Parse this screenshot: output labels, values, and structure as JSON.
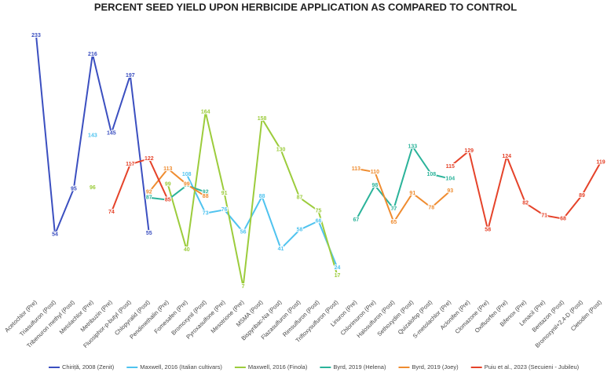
{
  "chart_data": {
    "type": "line",
    "title": "PERCENT SEED YIELD UPON HERBICIDE APPLICATION AS COMPARED TO CONTROL",
    "categories": [
      "Acetochlor (Pre)",
      "Triasulfuron (Post)",
      "Tribenuron methyl (Post)",
      "Metolachlor (Pre)",
      "Metribuzin (Pre)",
      "Fluosiphor-p-butyl (Post)",
      "Chlopyralid (Post)",
      "Pendimethalin (Pre)",
      "Fomesafen (Pre)",
      "Bromoxynil (Post)",
      "Pyroxasulfone (Pre)",
      "Mesotrione (Pre)",
      "MSMA (Post)",
      "Bispyribac-Na (Post)",
      "Flazasulfuron (Post)",
      "Rimsulfuron (Post)",
      "Trifloxysulfuron (Post)",
      "Linuron (Pre)",
      "Chlorimuron (Pre)",
      "Halosulfuron (Post)",
      "Sethoxydim (Post)",
      "Quizalofop (Post)",
      "S-metolachlor (Pre)",
      "Aclonifen (Pre)",
      "Clomazone (Pre)",
      "Oxifluorfen (Pre)",
      "Bifenox (Pre)",
      "Lenacil (Pre)",
      "Bentazon (Post)",
      "Bromoxynil+2,4-D (Post)",
      "Cletodim (Post)"
    ],
    "ylim": [
      0,
      240
    ],
    "series": [
      {
        "name": "Chiriță, 2008 (Zenit)",
        "color": "#3b4fc0",
        "values": [
          233,
          54,
          95,
          216,
          145,
          197,
          55,
          null,
          null,
          null,
          null,
          null,
          null,
          null,
          null,
          null,
          null,
          null,
          null,
          null,
          null,
          null,
          null,
          null,
          null,
          null,
          null,
          null,
          null,
          null,
          null
        ]
      },
      {
        "name": "Maxwell, 2016 (Italian cultivars)",
        "color": "#4fc3ef",
        "values": [
          null,
          null,
          null,
          143,
          null,
          null,
          null,
          null,
          108,
          73,
          76,
          56,
          88,
          41,
          58,
          66,
          24,
          null,
          null,
          null,
          null,
          null,
          null,
          null,
          null,
          null,
          null,
          null,
          null,
          null,
          null
        ]
      },
      {
        "name": "Maxwell, 2016 (Finola)",
        "color": "#9ccc3c",
        "values": [
          null,
          null,
          null,
          96,
          null,
          null,
          null,
          99,
          40,
          164,
          91,
          7,
          158,
          130,
          87,
          75,
          17,
          null,
          null,
          null,
          null,
          null,
          null,
          null,
          null,
          null,
          null,
          null,
          null,
          null,
          null
        ]
      },
      {
        "name": "Byrd, 2019 (Helena)",
        "color": "#2bb39a",
        "values": [
          null,
          null,
          null,
          null,
          null,
          null,
          87,
          85,
          98,
          92,
          null,
          null,
          null,
          null,
          null,
          null,
          null,
          67,
          98,
          77,
          133,
          108,
          104,
          null,
          null,
          null,
          null,
          null,
          null,
          null,
          null
        ]
      },
      {
        "name": "Byrd, 2019 (Joey)",
        "color": "#ef8c30",
        "values": [
          null,
          null,
          null,
          null,
          null,
          null,
          92,
          113,
          99,
          88,
          null,
          null,
          null,
          null,
          null,
          null,
          null,
          113,
          110,
          65,
          91,
          78,
          93,
          null,
          null,
          null,
          null,
          null,
          null,
          null,
          null
        ]
      },
      {
        "name": "Puiu et al., 2023 (Secuieni - Jubileu)",
        "color": "#e5432a",
        "values": [
          null,
          null,
          null,
          null,
          74,
          117,
          122,
          85,
          null,
          null,
          null,
          null,
          null,
          null,
          null,
          null,
          null,
          null,
          null,
          null,
          null,
          null,
          115,
          129,
          58,
          124,
          82,
          71,
          68,
          89,
          119
        ]
      }
    ]
  }
}
